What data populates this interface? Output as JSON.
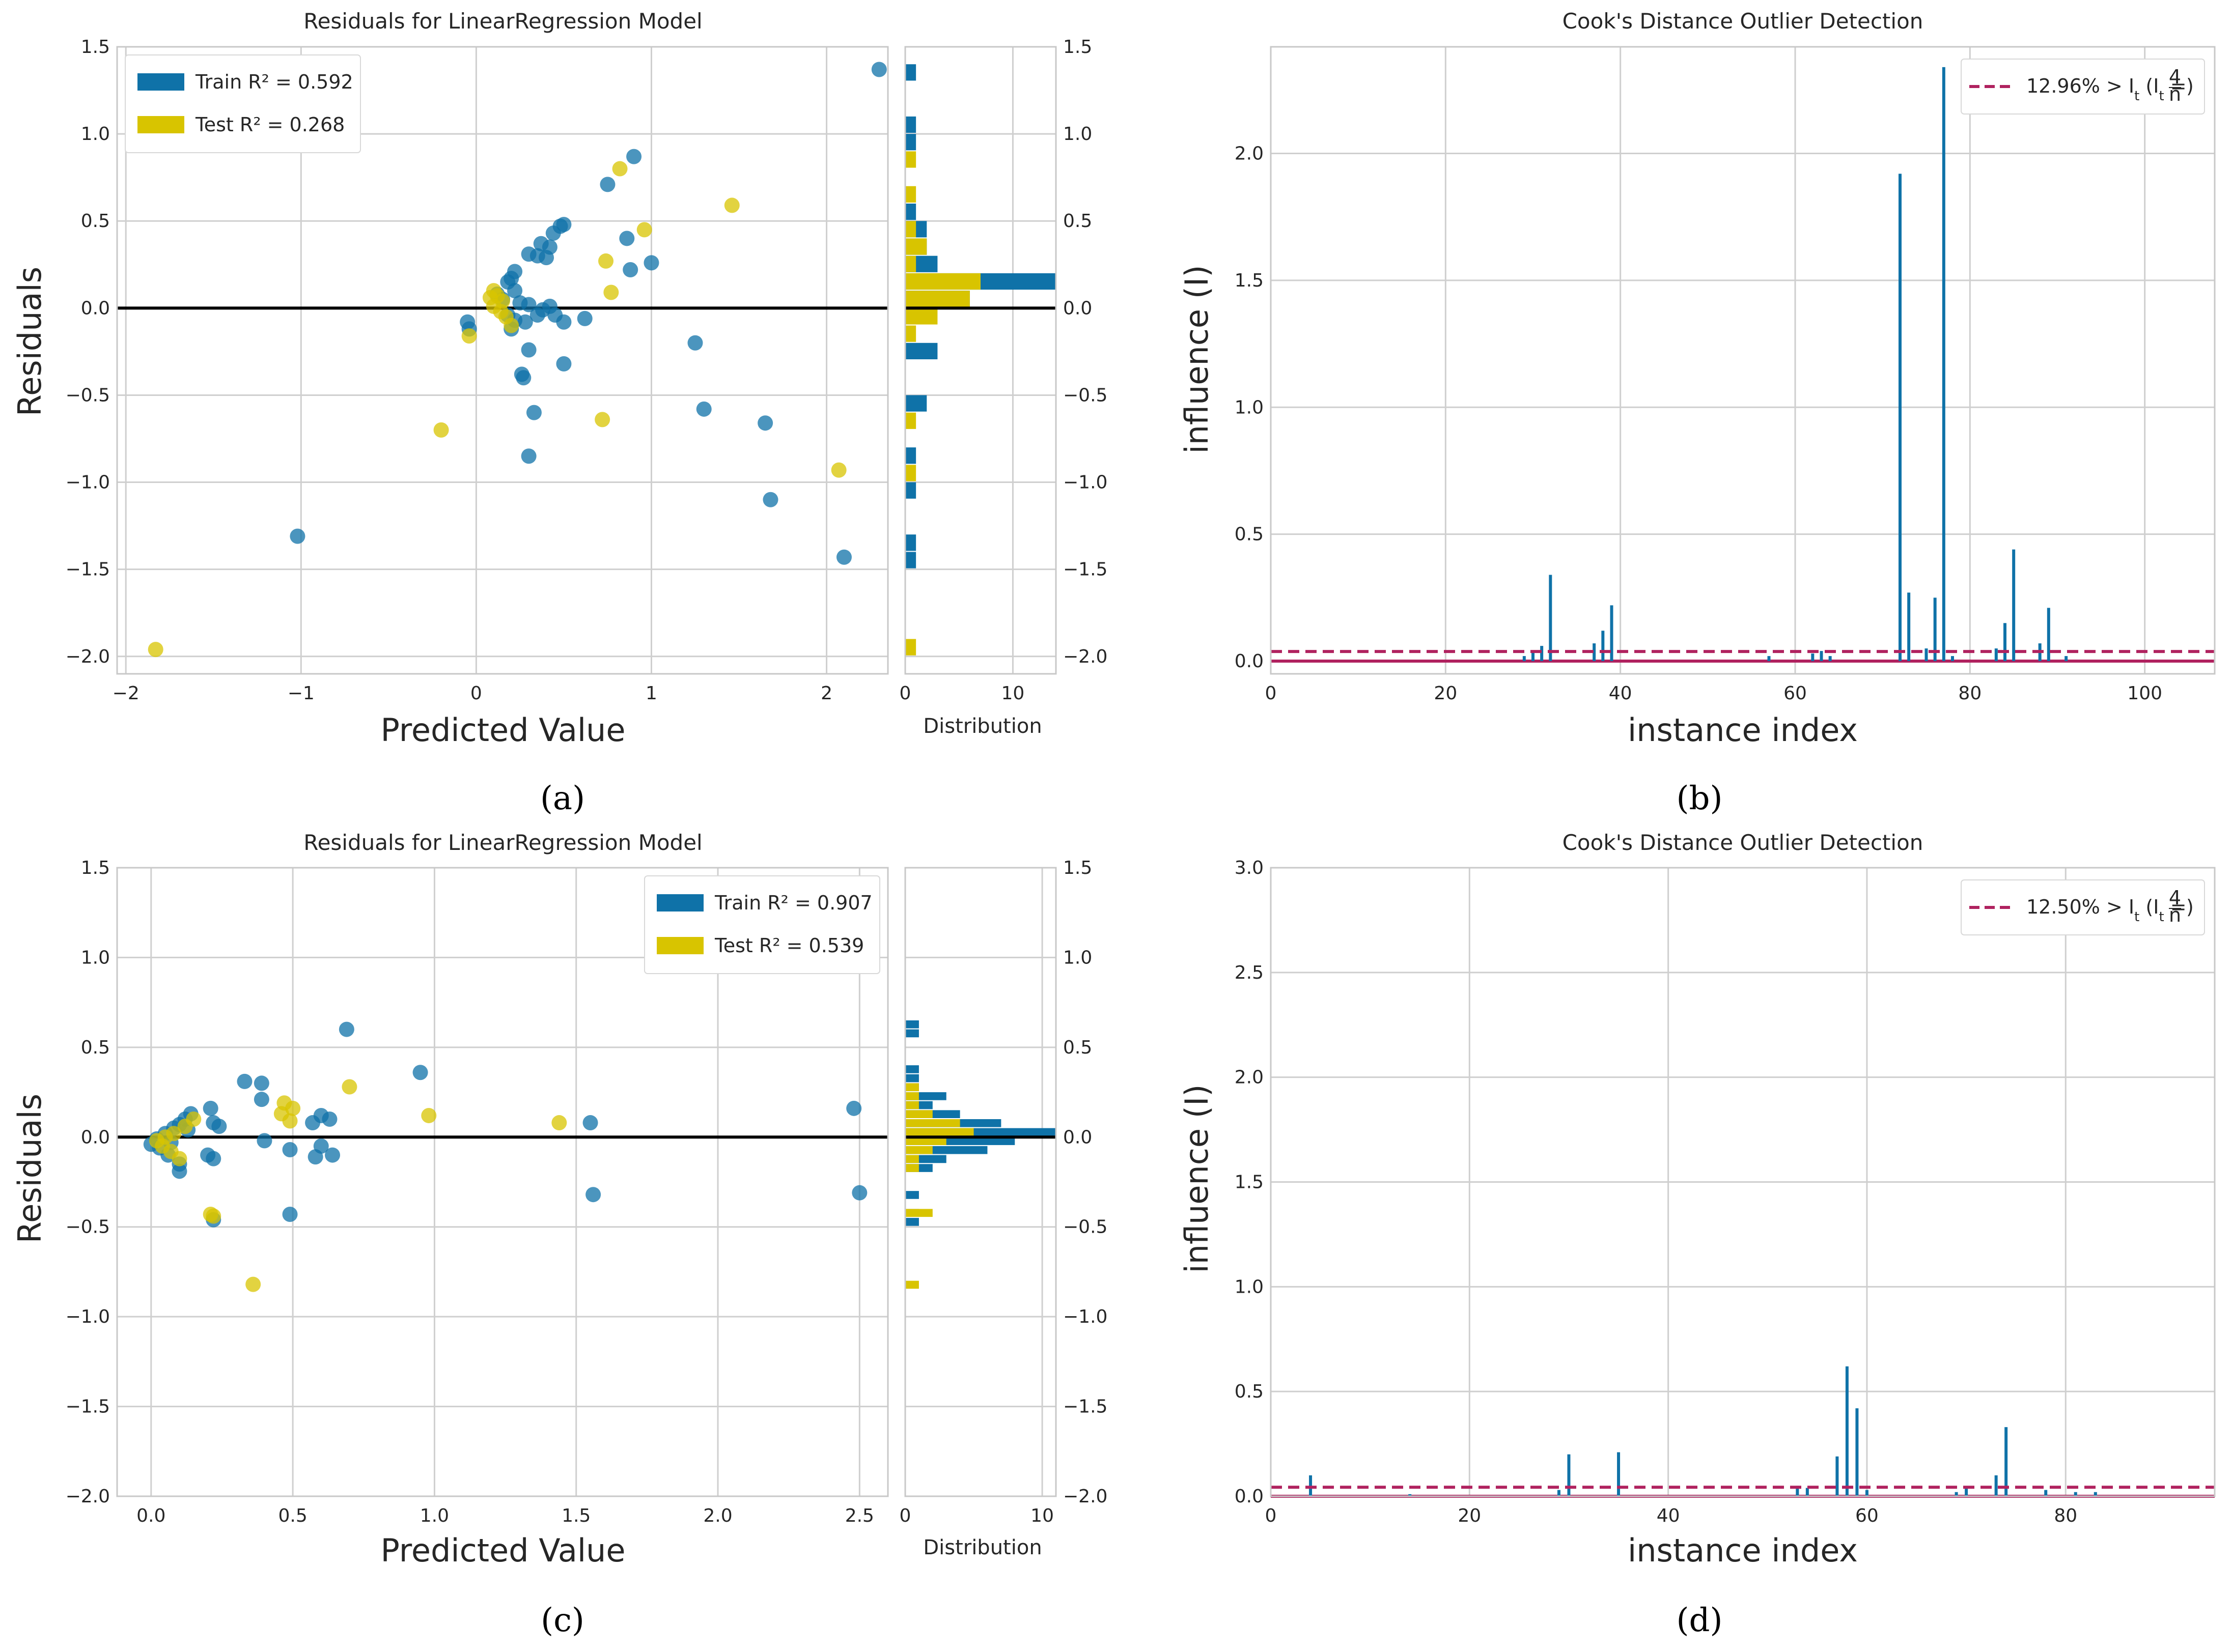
{
  "colors": {
    "train": "#0f72a8",
    "test": "#d8c400",
    "threshold": "#b0225f",
    "grid": "#cfcfcf",
    "frame": "#c8c8c8",
    "zero": "#000000"
  },
  "captions": {
    "a": "(a)",
    "b": "(b)",
    "c": "(c)",
    "d": "(d)"
  },
  "chart_data": [
    {
      "id": "a",
      "type": "scatter",
      "title": "Residuals for LinearRegression Model",
      "xlabel": "Predicted Value",
      "ylabel": "Residuals",
      "hist_label": "Distribution",
      "xlim": [
        -2.05,
        2.35
      ],
      "ylim": [
        -2.1,
        1.5
      ],
      "xticks": [
        -2,
        -1,
        0,
        1,
        2
      ],
      "xtick_labels": [
        "−2",
        "−1",
        "0",
        "1",
        "2"
      ],
      "yticks": [
        -2.0,
        -1.5,
        -1.0,
        -0.5,
        0.0,
        0.5,
        1.0,
        1.5
      ],
      "ytick_labels": [
        "−2.0",
        "−1.5",
        "−1.0",
        "−0.5",
        "0.0",
        "0.5",
        "1.0",
        "1.5"
      ],
      "hist_xlim": [
        0,
        14
      ],
      "hist_xticks": [
        0,
        10
      ],
      "hist_xtick_labels": [
        "0",
        "10"
      ],
      "legend": {
        "position": "top-left",
        "train_label": "Train R² = 0.592",
        "test_label": "Test R² = 0.268"
      },
      "series": [
        {
          "name": "Train",
          "points": [
            [
              2.3,
              1.37
            ],
            [
              0.9,
              0.87
            ],
            [
              0.75,
              0.71
            ],
            [
              0.5,
              0.48
            ],
            [
              0.48,
              0.47
            ],
            [
              0.44,
              0.43
            ],
            [
              0.37,
              0.37
            ],
            [
              0.42,
              0.35
            ],
            [
              0.35,
              0.3
            ],
            [
              0.4,
              0.29
            ],
            [
              0.3,
              0.31
            ],
            [
              0.86,
              0.4
            ],
            [
              0.88,
              0.22
            ],
            [
              1.0,
              0.26
            ],
            [
              0.22,
              0.21
            ],
            [
              0.2,
              0.17
            ],
            [
              0.18,
              0.15
            ],
            [
              0.22,
              0.1
            ],
            [
              0.12,
              0.08
            ],
            [
              0.15,
              0.05
            ],
            [
              0.25,
              0.03
            ],
            [
              0.3,
              0.02
            ],
            [
              0.38,
              -0.01
            ],
            [
              0.42,
              0.01
            ],
            [
              0.45,
              -0.04
            ],
            [
              0.35,
              -0.04
            ],
            [
              0.28,
              -0.08
            ],
            [
              0.5,
              -0.08
            ],
            [
              0.62,
              -0.06
            ],
            [
              0.22,
              -0.07
            ],
            [
              0.18,
              -0.04
            ],
            [
              0.2,
              -0.12
            ],
            [
              -0.05,
              -0.08
            ],
            [
              -0.04,
              -0.12
            ],
            [
              0.3,
              -0.24
            ],
            [
              0.5,
              -0.32
            ],
            [
              0.26,
              -0.38
            ],
            [
              0.27,
              -0.4
            ],
            [
              1.25,
              -0.2
            ],
            [
              0.33,
              -0.6
            ],
            [
              1.3,
              -0.58
            ],
            [
              1.65,
              -0.66
            ],
            [
              0.3,
              -0.85
            ],
            [
              1.68,
              -1.1
            ],
            [
              -1.02,
              -1.31
            ],
            [
              2.1,
              -1.43
            ]
          ]
        },
        {
          "name": "Test",
          "points": [
            [
              0.82,
              0.8
            ],
            [
              1.46,
              0.59
            ],
            [
              0.96,
              0.45
            ],
            [
              0.74,
              0.27
            ],
            [
              0.77,
              0.09
            ],
            [
              0.1,
              0.1
            ],
            [
              0.12,
              0.07
            ],
            [
              0.15,
              0.04
            ],
            [
              0.1,
              0.01
            ],
            [
              0.14,
              -0.02
            ],
            [
              0.08,
              0.06
            ],
            [
              0.2,
              -0.1
            ],
            [
              0.17,
              -0.05
            ],
            [
              -0.04,
              -0.16
            ],
            [
              -0.2,
              -0.7
            ],
            [
              0.72,
              -0.64
            ],
            [
              2.07,
              -0.93
            ],
            [
              -1.83,
              -1.96
            ]
          ]
        }
      ],
      "histogram": {
        "bin_edges": [
          -2.0,
          -1.9,
          -1.8,
          -1.7,
          -1.6,
          -1.5,
          -1.4,
          -1.3,
          -1.2,
          -1.1,
          -1.0,
          -0.9,
          -0.8,
          -0.7,
          -0.6,
          -0.5,
          -0.4,
          -0.3,
          -0.2,
          -0.1,
          0.0,
          0.1,
          0.2,
          0.3,
          0.4,
          0.5,
          0.6,
          0.7,
          0.8,
          0.9,
          1.0,
          1.1,
          1.2,
          1.3,
          1.4
        ],
        "train": [
          0,
          0,
          0,
          0,
          0,
          1,
          1,
          0,
          0,
          1,
          0,
          1,
          0,
          0,
          2,
          0,
          0,
          3,
          0,
          0,
          6,
          14,
          3,
          2,
          2,
          1,
          0,
          0,
          0,
          1,
          1,
          0,
          0,
          1
        ],
        "test": [
          1,
          0,
          0,
          0,
          0,
          0,
          0,
          0,
          0,
          0,
          1,
          0,
          0,
          1,
          0,
          0,
          0,
          0,
          1,
          3,
          6,
          7,
          1,
          2,
          1,
          0,
          1,
          0,
          1,
          0,
          0,
          0,
          0,
          0
        ]
      }
    },
    {
      "id": "b",
      "type": "bar",
      "title": "Cook's Distance Outlier Detection",
      "xlabel": "instance index",
      "ylabel": "influence (I)",
      "xlim": [
        0,
        108
      ],
      "ylim": [
        -0.05,
        2.42
      ],
      "xticks": [
        0,
        20,
        40,
        60,
        80,
        100
      ],
      "xtick_labels": [
        "0",
        "20",
        "40",
        "60",
        "80",
        "100"
      ],
      "yticks": [
        0.0,
        0.5,
        1.0,
        1.5,
        2.0
      ],
      "ytick_labels": [
        "0.0",
        "0.5",
        "1.0",
        "1.5",
        "2.0"
      ],
      "threshold": 0.038,
      "legend": {
        "position": "top-right",
        "label": "12.96% > I",
        "label_sub": "t",
        "label_paren": "(I",
        "label_paren_sub": "t",
        "label_eq": " = ",
        "frac_num": "4",
        "frac_den": "n",
        "label_close": ")"
      },
      "stems": [
        [
          29,
          0.02
        ],
        [
          30,
          0.04
        ],
        [
          31,
          0.06
        ],
        [
          32,
          0.34
        ],
        [
          37,
          0.07
        ],
        [
          38,
          0.12
        ],
        [
          39,
          0.22
        ],
        [
          57,
          0.02
        ],
        [
          62,
          0.03
        ],
        [
          63,
          0.04
        ],
        [
          64,
          0.02
        ],
        [
          72,
          1.92
        ],
        [
          73,
          0.27
        ],
        [
          75,
          0.05
        ],
        [
          76,
          0.25
        ],
        [
          77,
          2.34
        ],
        [
          78,
          0.02
        ],
        [
          83,
          0.05
        ],
        [
          84,
          0.15
        ],
        [
          85,
          0.44
        ],
        [
          88,
          0.07
        ],
        [
          89,
          0.21
        ],
        [
          91,
          0.02
        ]
      ]
    },
    {
      "id": "c",
      "type": "scatter",
      "title": "Residuals for LinearRegression Model",
      "xlabel": "Predicted Value",
      "ylabel": "Residuals",
      "hist_label": "Distribution",
      "xlim": [
        -0.12,
        2.6
      ],
      "ylim": [
        -2.0,
        1.5
      ],
      "xticks": [
        0.0,
        0.5,
        1.0,
        1.5,
        2.0,
        2.5
      ],
      "xtick_labels": [
        "0.0",
        "0.5",
        "1.0",
        "1.5",
        "2.0",
        "2.5"
      ],
      "yticks": [
        -2.0,
        -1.5,
        -1.0,
        -0.5,
        0.0,
        0.5,
        1.0,
        1.5
      ],
      "ytick_labels": [
        "−2.0",
        "−1.5",
        "−1.0",
        "−0.5",
        "0.0",
        "0.5",
        "1.0",
        "1.5"
      ],
      "hist_xlim": [
        0,
        11
      ],
      "hist_xticks": [
        0,
        10
      ],
      "hist_xtick_labels": [
        "0",
        "10"
      ],
      "legend": {
        "position": "top-right",
        "train_label": "Train R² = 0.907",
        "test_label": "Test R² = 0.539"
      },
      "series": [
        {
          "name": "Train",
          "points": [
            [
              0.69,
              0.6
            ],
            [
              0.95,
              0.36
            ],
            [
              0.33,
              0.31
            ],
            [
              0.39,
              0.3
            ],
            [
              0.39,
              0.21
            ],
            [
              0.21,
              0.16
            ],
            [
              0.14,
              0.13
            ],
            [
              0.12,
              0.1
            ],
            [
              0.1,
              0.07
            ],
            [
              0.08,
              0.05
            ],
            [
              0.24,
              0.06
            ],
            [
              0.22,
              0.08
            ],
            [
              0.6,
              0.12
            ],
            [
              0.57,
              0.08
            ],
            [
              0.63,
              0.1
            ],
            [
              0.05,
              0.02
            ],
            [
              0.02,
              -0.01
            ],
            [
              0.0,
              -0.04
            ],
            [
              0.03,
              -0.06
            ],
            [
              0.06,
              -0.1
            ],
            [
              0.1,
              -0.15
            ],
            [
              0.1,
              -0.19
            ],
            [
              0.2,
              -0.1
            ],
            [
              0.22,
              -0.12
            ],
            [
              0.4,
              -0.02
            ],
            [
              0.49,
              -0.07
            ],
            [
              0.6,
              -0.05
            ],
            [
              0.58,
              -0.11
            ],
            [
              0.64,
              -0.1
            ],
            [
              0.49,
              -0.43
            ],
            [
              0.22,
              -0.46
            ],
            [
              1.55,
              0.08
            ],
            [
              1.56,
              -0.32
            ],
            [
              2.48,
              0.16
            ],
            [
              2.5,
              -0.31
            ],
            [
              0.13,
              0.04
            ],
            [
              0.07,
              -0.03
            ]
          ]
        },
        {
          "name": "Test",
          "points": [
            [
              0.7,
              0.28
            ],
            [
              0.47,
              0.19
            ],
            [
              0.5,
              0.16
            ],
            [
              0.46,
              0.13
            ],
            [
              0.98,
              0.12
            ],
            [
              0.49,
              0.09
            ],
            [
              1.44,
              0.08
            ],
            [
              0.15,
              0.1
            ],
            [
              0.12,
              0.06
            ],
            [
              0.08,
              0.02
            ],
            [
              0.05,
              0.0
            ],
            [
              0.02,
              -0.02
            ],
            [
              0.04,
              -0.05
            ],
            [
              0.07,
              -0.08
            ],
            [
              0.1,
              -0.12
            ],
            [
              0.21,
              -0.43
            ],
            [
              0.22,
              -0.44
            ],
            [
              0.36,
              -0.82
            ]
          ]
        }
      ],
      "histogram": {
        "bin_edges": [
          -0.85,
          -0.8,
          -0.75,
          -0.7,
          -0.65,
          -0.6,
          -0.55,
          -0.5,
          -0.45,
          -0.4,
          -0.35,
          -0.3,
          -0.25,
          -0.2,
          -0.15,
          -0.1,
          -0.05,
          0.0,
          0.05,
          0.1,
          0.15,
          0.2,
          0.25,
          0.3,
          0.35,
          0.4,
          0.45,
          0.5,
          0.55,
          0.6,
          0.65
        ],
        "train": [
          0,
          0,
          0,
          0,
          0,
          0,
          0,
          1,
          1,
          0,
          1,
          0,
          0,
          2,
          3,
          6,
          8,
          11,
          7,
          4,
          2,
          3,
          1,
          1,
          1,
          0,
          0,
          0,
          1,
          1
        ],
        "test": [
          1,
          0,
          0,
          0,
          0,
          0,
          0,
          0,
          2,
          0,
          0,
          0,
          0,
          1,
          1,
          2,
          3,
          5,
          4,
          2,
          1,
          1,
          1,
          0,
          0,
          0,
          0,
          0,
          0,
          0
        ]
      }
    },
    {
      "id": "d",
      "type": "bar",
      "title": "Cook's Distance Outlier Detection",
      "xlabel": "instance index",
      "ylabel": "influence (I)",
      "xlim": [
        0,
        95
      ],
      "ylim": [
        0.0,
        3.0
      ],
      "xticks": [
        0,
        20,
        40,
        60,
        80
      ],
      "xtick_labels": [
        "0",
        "20",
        "40",
        "60",
        "80"
      ],
      "yticks": [
        0.0,
        0.5,
        1.0,
        1.5,
        2.0,
        2.5,
        3.0
      ],
      "ytick_labels": [
        "0.0",
        "0.5",
        "1.0",
        "1.5",
        "2.0",
        "2.5",
        "3.0"
      ],
      "threshold": 0.043,
      "legend": {
        "position": "top-right",
        "label": "12.50% > I",
        "label_sub": "t",
        "label_paren": "(I",
        "label_paren_sub": "t",
        "label_eq": " = ",
        "frac_num": "4",
        "frac_den": "n",
        "label_close": ")"
      },
      "stems": [
        [
          4,
          0.1
        ],
        [
          14,
          0.01
        ],
        [
          29,
          0.03
        ],
        [
          30,
          0.2
        ],
        [
          35,
          0.21
        ],
        [
          53,
          0.05
        ],
        [
          54,
          0.04
        ],
        [
          57,
          0.19
        ],
        [
          58,
          0.62
        ],
        [
          59,
          0.42
        ],
        [
          60,
          0.03
        ],
        [
          69,
          0.02
        ],
        [
          70,
          0.04
        ],
        [
          73,
          0.1
        ],
        [
          74,
          0.33
        ],
        [
          78,
          0.03
        ],
        [
          81,
          0.02
        ],
        [
          83,
          0.02
        ]
      ]
    }
  ]
}
